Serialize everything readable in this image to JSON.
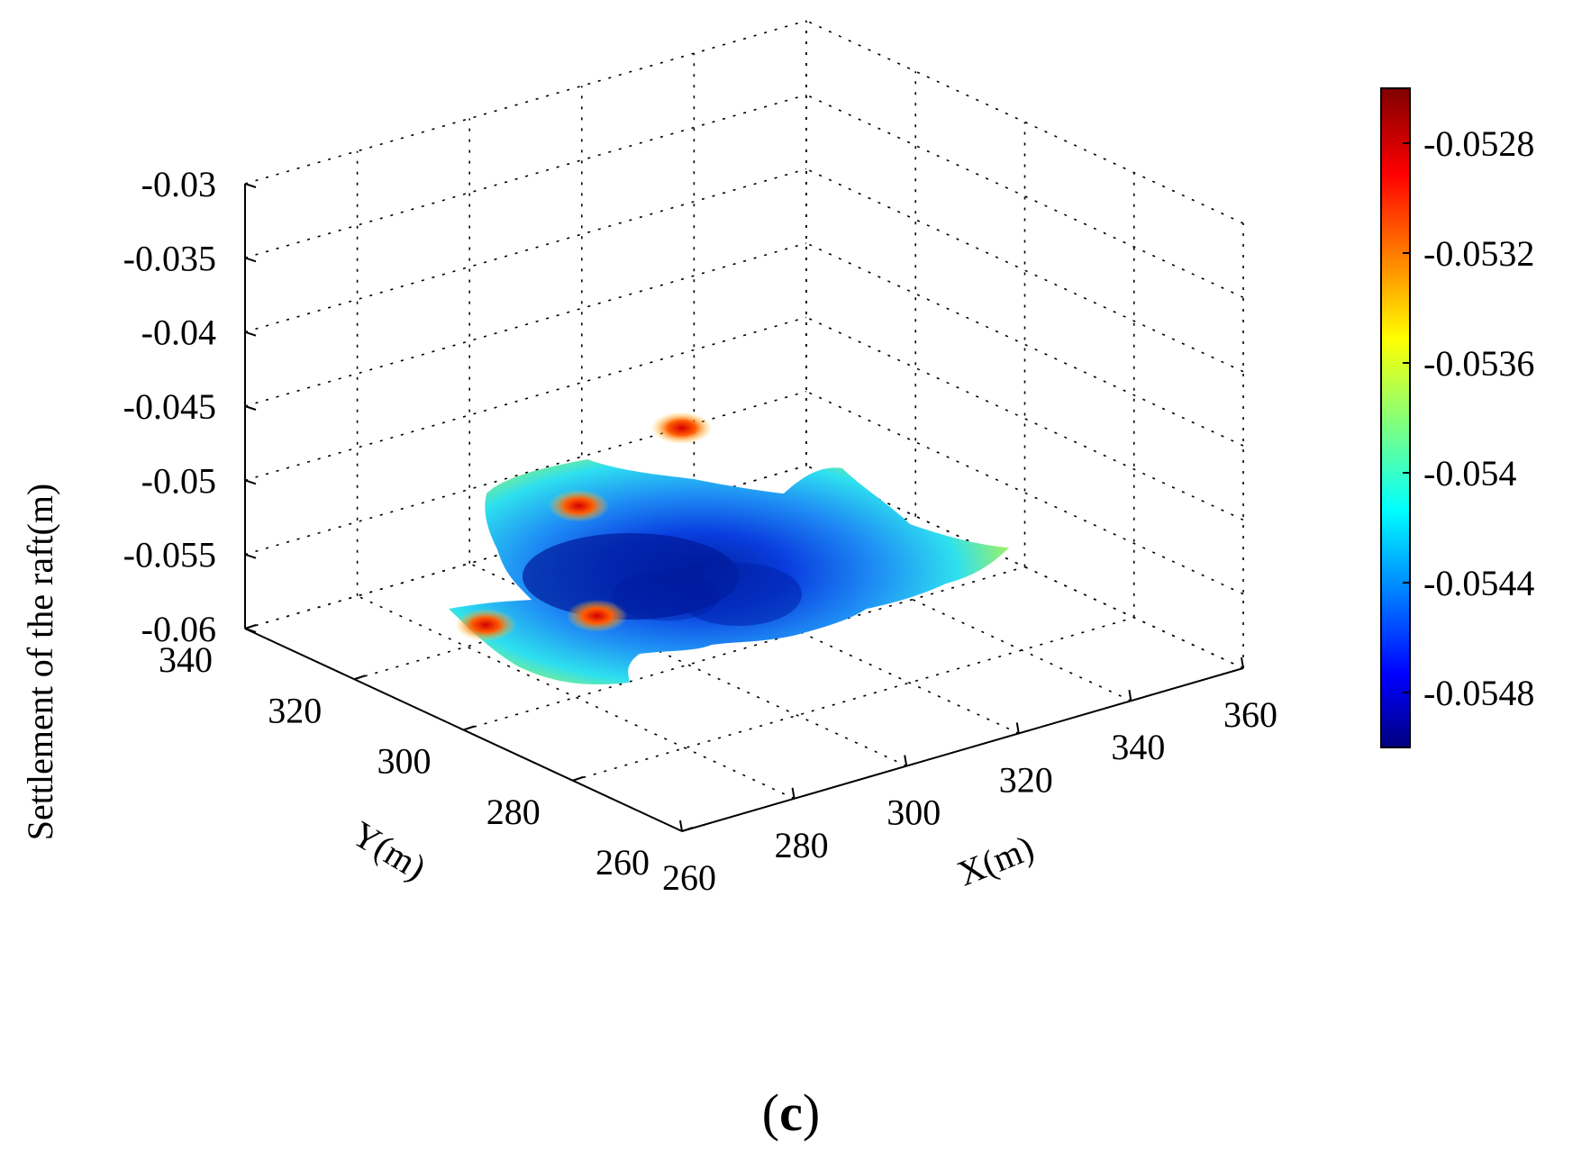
{
  "chart_data": {
    "type": "surface",
    "panel_label": "c",
    "zlabel": "Settlement of the raft(m)",
    "xlabel": "X(m)",
    "ylabel": "Y(m)",
    "zlim": [
      -0.06,
      -0.03
    ],
    "xlim": [
      260,
      360
    ],
    "ylim": [
      260,
      340
    ],
    "z_ticks": [
      "-0.03",
      "-0.035",
      "-0.04",
      "-0.045",
      "-0.05",
      "-0.055",
      "-0.06"
    ],
    "x_ticks": [
      "260",
      "280",
      "300",
      "320",
      "340",
      "360"
    ],
    "y_ticks": [
      "260",
      "280",
      "300",
      "320",
      "340"
    ],
    "grid": true,
    "colormap": "jet",
    "colorbar": {
      "position": "right",
      "range": [
        -0.055,
        -0.0526
      ],
      "ticks": [
        "-0.0528",
        "-0.0532",
        "-0.0536",
        "-0.054",
        "-0.0544",
        "-0.0548"
      ]
    },
    "surface_value_range": [
      -0.0549,
      -0.0527
    ],
    "surface_features": [
      {
        "x": 262,
        "y": 298,
        "z": -0.0528
      },
      {
        "x": 276,
        "y": 292,
        "z": -0.0527
      },
      {
        "x": 300,
        "y": 320,
        "z": -0.0527
      },
      {
        "x": 330,
        "y": 332,
        "z": -0.0528
      },
      {
        "x": 296,
        "y": 300,
        "z": -0.0549
      }
    ]
  }
}
